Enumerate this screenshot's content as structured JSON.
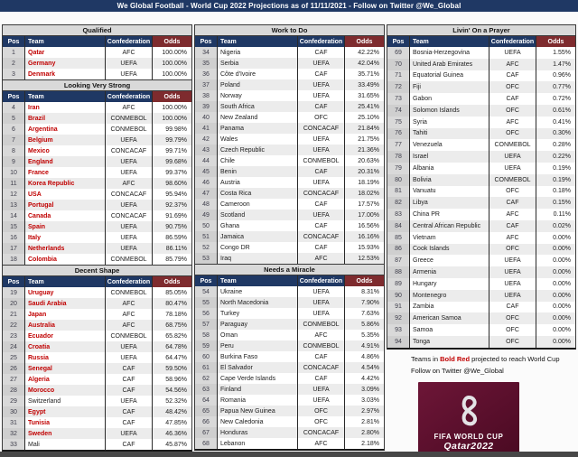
{
  "title": "We Global Football - World Cup 2022 Projections as of 11/11/2021 - Follow on Twitter @We_Global",
  "table_headers": {
    "pos": "Pos",
    "team": "Team",
    "confederation": "Confederation",
    "odds": "Odds"
  },
  "colors": {
    "header_navy": "#1f3864",
    "odds_maroon": "#7e2b2e",
    "projected_team_red": "#c00000",
    "section_header_gray": "#d9d9d9",
    "row_stripe_gray": "#ececec",
    "logo_maroon": "#5a0f2c"
  },
  "sections": [
    {
      "column": 0,
      "title": "Qualified",
      "rows": [
        {
          "pos": "1",
          "team": "Qatar",
          "conf": "AFC",
          "odds": "100.00%",
          "red": true
        },
        {
          "pos": "2",
          "team": "Germany",
          "conf": "UEFA",
          "odds": "100.00%",
          "red": true
        },
        {
          "pos": "3",
          "team": "Denmark",
          "conf": "UEFA",
          "odds": "100.00%",
          "red": true
        }
      ]
    },
    {
      "column": 0,
      "title": "Looking Very Strong",
      "rows": [
        {
          "pos": "4",
          "team": "Iran",
          "conf": "AFC",
          "odds": "100.00%",
          "red": true
        },
        {
          "pos": "5",
          "team": "Brazil",
          "conf": "CONMEBOL",
          "odds": "100.00%",
          "red": true
        },
        {
          "pos": "6",
          "team": "Argentina",
          "conf": "CONMEBOL",
          "odds": "99.98%",
          "red": true
        },
        {
          "pos": "7",
          "team": "Belgium",
          "conf": "UEFA",
          "odds": "99.79%",
          "red": true
        },
        {
          "pos": "8",
          "team": "Mexico",
          "conf": "CONCACAF",
          "odds": "99.71%",
          "red": true
        },
        {
          "pos": "9",
          "team": "England",
          "conf": "UEFA",
          "odds": "99.68%",
          "red": true
        },
        {
          "pos": "10",
          "team": "France",
          "conf": "UEFA",
          "odds": "99.37%",
          "red": true
        },
        {
          "pos": "11",
          "team": "Korea Republic",
          "conf": "AFC",
          "odds": "98.60%",
          "red": true
        },
        {
          "pos": "12",
          "team": "USA",
          "conf": "CONCACAF",
          "odds": "95.94%",
          "red": true
        },
        {
          "pos": "13",
          "team": "Portugal",
          "conf": "UEFA",
          "odds": "92.37%",
          "red": true
        },
        {
          "pos": "14",
          "team": "Canada",
          "conf": "CONCACAF",
          "odds": "91.69%",
          "red": true
        },
        {
          "pos": "15",
          "team": "Spain",
          "conf": "UEFA",
          "odds": "90.75%",
          "red": true
        },
        {
          "pos": "16",
          "team": "Italy",
          "conf": "UEFA",
          "odds": "86.59%",
          "red": true
        },
        {
          "pos": "17",
          "team": "Netherlands",
          "conf": "UEFA",
          "odds": "86.11%",
          "red": true
        },
        {
          "pos": "18",
          "team": "Colombia",
          "conf": "CONMEBOL",
          "odds": "85.79%",
          "red": true
        }
      ]
    },
    {
      "column": 0,
      "title": "Decent Shape",
      "rows": [
        {
          "pos": "19",
          "team": "Uruguay",
          "conf": "CONMEBOL",
          "odds": "85.05%",
          "red": true
        },
        {
          "pos": "20",
          "team": "Saudi Arabia",
          "conf": "AFC",
          "odds": "80.47%",
          "red": true
        },
        {
          "pos": "21",
          "team": "Japan",
          "conf": "AFC",
          "odds": "78.18%",
          "red": true
        },
        {
          "pos": "22",
          "team": "Australia",
          "conf": "AFC",
          "odds": "68.75%",
          "red": true
        },
        {
          "pos": "23",
          "team": "Ecuador",
          "conf": "CONMEBOL",
          "odds": "65.82%",
          "red": true
        },
        {
          "pos": "24",
          "team": "Croatia",
          "conf": "UEFA",
          "odds": "64.78%",
          "red": true
        },
        {
          "pos": "25",
          "team": "Russia",
          "conf": "UEFA",
          "odds": "64.47%",
          "red": true
        },
        {
          "pos": "26",
          "team": "Senegal",
          "conf": "CAF",
          "odds": "59.50%",
          "red": true
        },
        {
          "pos": "27",
          "team": "Algeria",
          "conf": "CAF",
          "odds": "58.96%",
          "red": true
        },
        {
          "pos": "28",
          "team": "Morocco",
          "conf": "CAF",
          "odds": "54.56%",
          "red": true
        },
        {
          "pos": "29",
          "team": "Switzerland",
          "conf": "UEFA",
          "odds": "52.32%",
          "red": false
        },
        {
          "pos": "30",
          "team": "Egypt",
          "conf": "CAF",
          "odds": "48.42%",
          "red": true
        },
        {
          "pos": "31",
          "team": "Tunisia",
          "conf": "CAF",
          "odds": "47.85%",
          "red": true
        },
        {
          "pos": "32",
          "team": "Sweden",
          "conf": "UEFA",
          "odds": "46.36%",
          "red": true
        },
        {
          "pos": "33",
          "team": "Mali",
          "conf": "CAF",
          "odds": "45.87%",
          "red": false
        }
      ]
    },
    {
      "column": 1,
      "title": "Work to Do",
      "rows": [
        {
          "pos": "34",
          "team": "Nigeria",
          "conf": "CAF",
          "odds": "42.22%",
          "red": false
        },
        {
          "pos": "35",
          "team": "Serbia",
          "conf": "UEFA",
          "odds": "42.04%",
          "red": false
        },
        {
          "pos": "36",
          "team": "Côte d'Ivoire",
          "conf": "CAF",
          "odds": "35.71%",
          "red": false
        },
        {
          "pos": "37",
          "team": "Poland",
          "conf": "UEFA",
          "odds": "33.49%",
          "red": false
        },
        {
          "pos": "38",
          "team": "Norway",
          "conf": "UEFA",
          "odds": "31.65%",
          "red": false
        },
        {
          "pos": "39",
          "team": "South Africa",
          "conf": "CAF",
          "odds": "25.41%",
          "red": false
        },
        {
          "pos": "40",
          "team": "New Zealand",
          "conf": "OFC",
          "odds": "25.10%",
          "red": false
        },
        {
          "pos": "41",
          "team": "Panama",
          "conf": "CONCACAF",
          "odds": "21.84%",
          "red": false
        },
        {
          "pos": "42",
          "team": "Wales",
          "conf": "UEFA",
          "odds": "21.75%",
          "red": false
        },
        {
          "pos": "43",
          "team": "Czech Republic",
          "conf": "UEFA",
          "odds": "21.36%",
          "red": false
        },
        {
          "pos": "44",
          "team": "Chile",
          "conf": "CONMEBOL",
          "odds": "20.63%",
          "red": false
        },
        {
          "pos": "45",
          "team": "Benin",
          "conf": "CAF",
          "odds": "20.31%",
          "red": false
        },
        {
          "pos": "46",
          "team": "Austria",
          "conf": "UEFA",
          "odds": "18.19%",
          "red": false
        },
        {
          "pos": "47",
          "team": "Costa Rica",
          "conf": "CONCACAF",
          "odds": "18.02%",
          "red": false
        },
        {
          "pos": "48",
          "team": "Cameroon",
          "conf": "CAF",
          "odds": "17.57%",
          "red": false
        },
        {
          "pos": "49",
          "team": "Scotland",
          "conf": "UEFA",
          "odds": "17.00%",
          "red": false
        },
        {
          "pos": "50",
          "team": "Ghana",
          "conf": "CAF",
          "odds": "16.56%",
          "red": false
        },
        {
          "pos": "51",
          "team": "Jamaica",
          "conf": "CONCACAF",
          "odds": "16.16%",
          "red": false
        },
        {
          "pos": "52",
          "team": "Congo DR",
          "conf": "CAF",
          "odds": "15.93%",
          "red": false
        },
        {
          "pos": "53",
          "team": "Iraq",
          "conf": "AFC",
          "odds": "12.53%",
          "red": false
        }
      ]
    },
    {
      "column": 1,
      "title": "Needs a Miracle",
      "rows": [
        {
          "pos": "54",
          "team": "Ukraine",
          "conf": "UEFA",
          "odds": "8.31%",
          "red": false
        },
        {
          "pos": "55",
          "team": "North Macedonia",
          "conf": "UEFA",
          "odds": "7.90%",
          "red": false
        },
        {
          "pos": "56",
          "team": "Turkey",
          "conf": "UEFA",
          "odds": "7.63%",
          "red": false
        },
        {
          "pos": "57",
          "team": "Paraguay",
          "conf": "CONMEBOL",
          "odds": "5.86%",
          "red": false
        },
        {
          "pos": "58",
          "team": "Oman",
          "conf": "AFC",
          "odds": "5.35%",
          "red": false
        },
        {
          "pos": "59",
          "team": "Peru",
          "conf": "CONMEBOL",
          "odds": "4.91%",
          "red": false
        },
        {
          "pos": "60",
          "team": "Burkina Faso",
          "conf": "CAF",
          "odds": "4.86%",
          "red": false
        },
        {
          "pos": "61",
          "team": "El Salvador",
          "conf": "CONCACAF",
          "odds": "4.54%",
          "red": false
        },
        {
          "pos": "62",
          "team": "Cape Verde Islands",
          "conf": "CAF",
          "odds": "4.42%",
          "red": false
        },
        {
          "pos": "63",
          "team": "Finland",
          "conf": "UEFA",
          "odds": "3.09%",
          "red": false
        },
        {
          "pos": "64",
          "team": "Romania",
          "conf": "UEFA",
          "odds": "3.03%",
          "red": false
        },
        {
          "pos": "65",
          "team": "Papua New Guinea",
          "conf": "OFC",
          "odds": "2.97%",
          "red": false
        },
        {
          "pos": "66",
          "team": "New Caledonia",
          "conf": "OFC",
          "odds": "2.81%",
          "red": false
        },
        {
          "pos": "67",
          "team": "Honduras",
          "conf": "CONCACAF",
          "odds": "2.80%",
          "red": false
        },
        {
          "pos": "68",
          "team": "Lebanon",
          "conf": "AFC",
          "odds": "2.18%",
          "red": false
        }
      ]
    },
    {
      "column": 2,
      "title": "Livin' On a Prayer",
      "rows": [
        {
          "pos": "69",
          "team": "Bosnia-Herzegovina",
          "conf": "UEFA",
          "odds": "1.55%",
          "red": false
        },
        {
          "pos": "70",
          "team": "United Arab Emirates",
          "conf": "AFC",
          "odds": "1.47%",
          "red": false
        },
        {
          "pos": "71",
          "team": "Equatorial Guinea",
          "conf": "CAF",
          "odds": "0.96%",
          "red": false
        },
        {
          "pos": "72",
          "team": "Fiji",
          "conf": "OFC",
          "odds": "0.77%",
          "red": false
        },
        {
          "pos": "73",
          "team": "Gabon",
          "conf": "CAF",
          "odds": "0.72%",
          "red": false
        },
        {
          "pos": "74",
          "team": "Solomon Islands",
          "conf": "OFC",
          "odds": "0.61%",
          "red": false
        },
        {
          "pos": "75",
          "team": "Syria",
          "conf": "AFC",
          "odds": "0.41%",
          "red": false
        },
        {
          "pos": "76",
          "team": "Tahiti",
          "conf": "OFC",
          "odds": "0.30%",
          "red": false
        },
        {
          "pos": "77",
          "team": "Venezuela",
          "conf": "CONMEBOL",
          "odds": "0.28%",
          "red": false
        },
        {
          "pos": "78",
          "team": "Israel",
          "conf": "UEFA",
          "odds": "0.22%",
          "red": false
        },
        {
          "pos": "79",
          "team": "Albania",
          "conf": "UEFA",
          "odds": "0.19%",
          "red": false
        },
        {
          "pos": "80",
          "team": "Bolivia",
          "conf": "CONMEBOL",
          "odds": "0.19%",
          "red": false
        },
        {
          "pos": "81",
          "team": "Vanuatu",
          "conf": "OFC",
          "odds": "0.18%",
          "red": false
        },
        {
          "pos": "82",
          "team": "Libya",
          "conf": "CAF",
          "odds": "0.15%",
          "red": false
        },
        {
          "pos": "83",
          "team": "China PR",
          "conf": "AFC",
          "odds": "0.11%",
          "red": false
        },
        {
          "pos": "84",
          "team": "Central African Republic",
          "conf": "CAF",
          "odds": "0.02%",
          "red": false
        },
        {
          "pos": "85",
          "team": "Vietnam",
          "conf": "AFC",
          "odds": "0.00%",
          "red": false
        },
        {
          "pos": "86",
          "team": "Cook Islands",
          "conf": "OFC",
          "odds": "0.00%",
          "red": false
        },
        {
          "pos": "87",
          "team": "Greece",
          "conf": "UEFA",
          "odds": "0.00%",
          "red": false
        },
        {
          "pos": "88",
          "team": "Armenia",
          "conf": "UEFA",
          "odds": "0.00%",
          "red": false
        },
        {
          "pos": "89",
          "team": "Hungary",
          "conf": "UEFA",
          "odds": "0.00%",
          "red": false
        },
        {
          "pos": "90",
          "team": "Montenegro",
          "conf": "UEFA",
          "odds": "0.00%",
          "red": false
        },
        {
          "pos": "91",
          "team": "Zambia",
          "conf": "CAF",
          "odds": "0.00%",
          "red": false
        },
        {
          "pos": "92",
          "team": "American Samoa",
          "conf": "OFC",
          "odds": "0.00%",
          "red": false
        },
        {
          "pos": "93",
          "team": "Samoa",
          "conf": "OFC",
          "odds": "0.00%",
          "red": false
        },
        {
          "pos": "94",
          "team": "Tonga",
          "conf": "OFC",
          "odds": "0.00%",
          "red": false
        }
      ]
    }
  ],
  "notes": {
    "line1_prefix": "Teams in ",
    "line1_bold": "Bold Red",
    "line1_suffix": " projected to reach World Cup",
    "line2": "Follow on Twitter @We_Global"
  },
  "logo": {
    "line1": "FIFA WORLD CUP",
    "line2": "Qatar2022"
  }
}
